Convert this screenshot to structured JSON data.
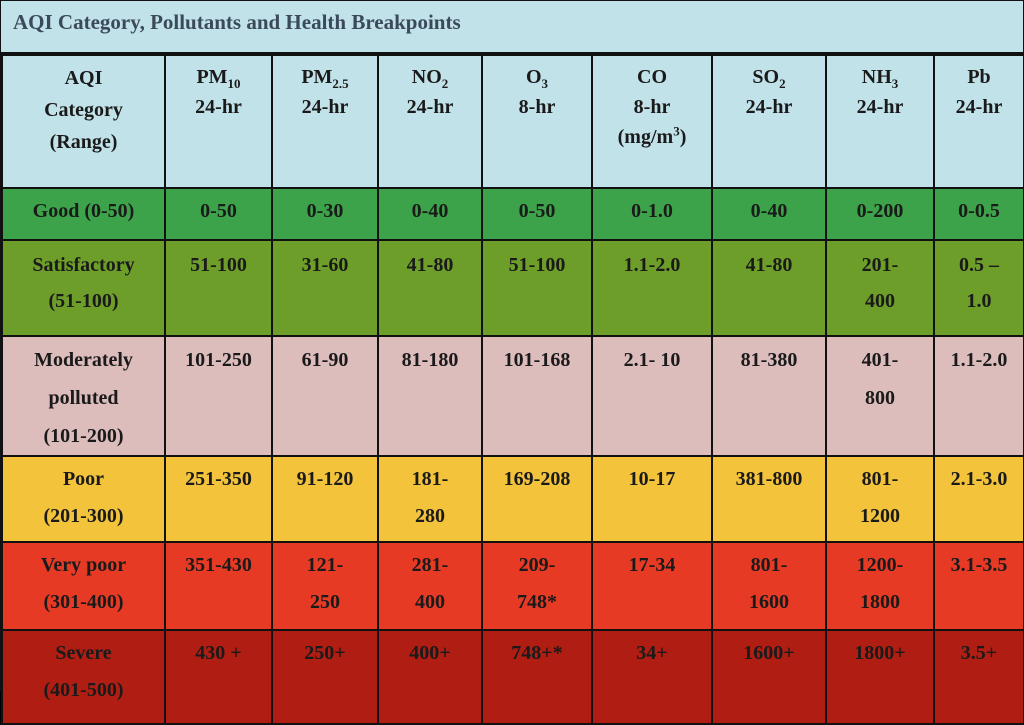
{
  "title": "AQI Category, Pollutants and Health Breakpoints",
  "header": {
    "category": [
      "AQI",
      "Category",
      "(Range)"
    ],
    "pm10": {
      "base": "PM",
      "sub": "10",
      "period": "24-hr"
    },
    "pm25": {
      "base": "PM",
      "sub": "2.5",
      "period": "24-hr"
    },
    "no2": {
      "base": "NO",
      "sub": "2",
      "period": "24-hr"
    },
    "o3": {
      "base": "O",
      "sub": "3",
      "period": "8-hr"
    },
    "co": {
      "base": "CO",
      "period": "8-hr",
      "unit_pre": "(mg/m",
      "unit_sup": "3",
      "unit_post": ")"
    },
    "so2": {
      "base": "SO",
      "sub": "2",
      "period": "24-hr"
    },
    "nh3": {
      "base": "NH",
      "sub": "3",
      "period": "24-hr"
    },
    "pb": {
      "base": "Pb",
      "period": "24-hr"
    }
  },
  "rows": [
    {
      "category": [
        "Good (0-50)"
      ],
      "values": [
        [
          "0-50"
        ],
        [
          "0-30"
        ],
        [
          "0-40"
        ],
        [
          "0-50"
        ],
        [
          "0-1.0"
        ],
        [
          "0-40"
        ],
        [
          "0-200"
        ],
        [
          "0-0.5"
        ]
      ]
    },
    {
      "category": [
        "Satisfactory",
        "(51-100)"
      ],
      "values": [
        [
          "51-100"
        ],
        [
          "31-60"
        ],
        [
          "41-80"
        ],
        [
          "51-100"
        ],
        [
          "1.1-2.0"
        ],
        [
          "41-80"
        ],
        [
          "201-",
          "400"
        ],
        [
          "0.5 –",
          "1.0"
        ]
      ]
    },
    {
      "category": [
        "Moderately",
        "polluted",
        "(101-200)"
      ],
      "values": [
        [
          "101-250"
        ],
        [
          "61-90"
        ],
        [
          "81-180"
        ],
        [
          "101-168"
        ],
        [
          "2.1- 10"
        ],
        [
          "81-380"
        ],
        [
          "401-",
          "800"
        ],
        [
          "1.1-2.0"
        ]
      ]
    },
    {
      "category": [
        "Poor",
        "(201-300)"
      ],
      "values": [
        [
          "251-350"
        ],
        [
          "91-120"
        ],
        [
          "181-",
          "280"
        ],
        [
          "169-208"
        ],
        [
          "10-17"
        ],
        [
          "381-800"
        ],
        [
          "801-",
          "1200"
        ],
        [
          "2.1-3.0"
        ]
      ]
    },
    {
      "category": [
        "Very poor",
        "(301-400)"
      ],
      "values": [
        [
          "351-430"
        ],
        [
          "121-",
          "250"
        ],
        [
          "281-",
          "400"
        ],
        [
          "209-",
          "748*"
        ],
        [
          "17-34"
        ],
        [
          "801-",
          "1600"
        ],
        [
          "1200-",
          "1800"
        ],
        [
          "3.1-3.5"
        ]
      ]
    },
    {
      "category": [
        "Severe",
        "(401-500)"
      ],
      "values": [
        [
          "430 +"
        ],
        [
          "250+"
        ],
        [
          "400+"
        ],
        [
          "748+*"
        ],
        [
          "34+"
        ],
        [
          "1600+"
        ],
        [
          "1800+"
        ],
        [
          "3.5+"
        ]
      ]
    }
  ],
  "colors": {
    "header_bg": "#c2e2ea",
    "good": "#3da34a",
    "satisfactory": "#6e9e2a",
    "moderately_polluted": "#ddbcbc",
    "poor": "#f3c33c",
    "very_poor": "#e63a25",
    "severe": "#b01e13"
  }
}
